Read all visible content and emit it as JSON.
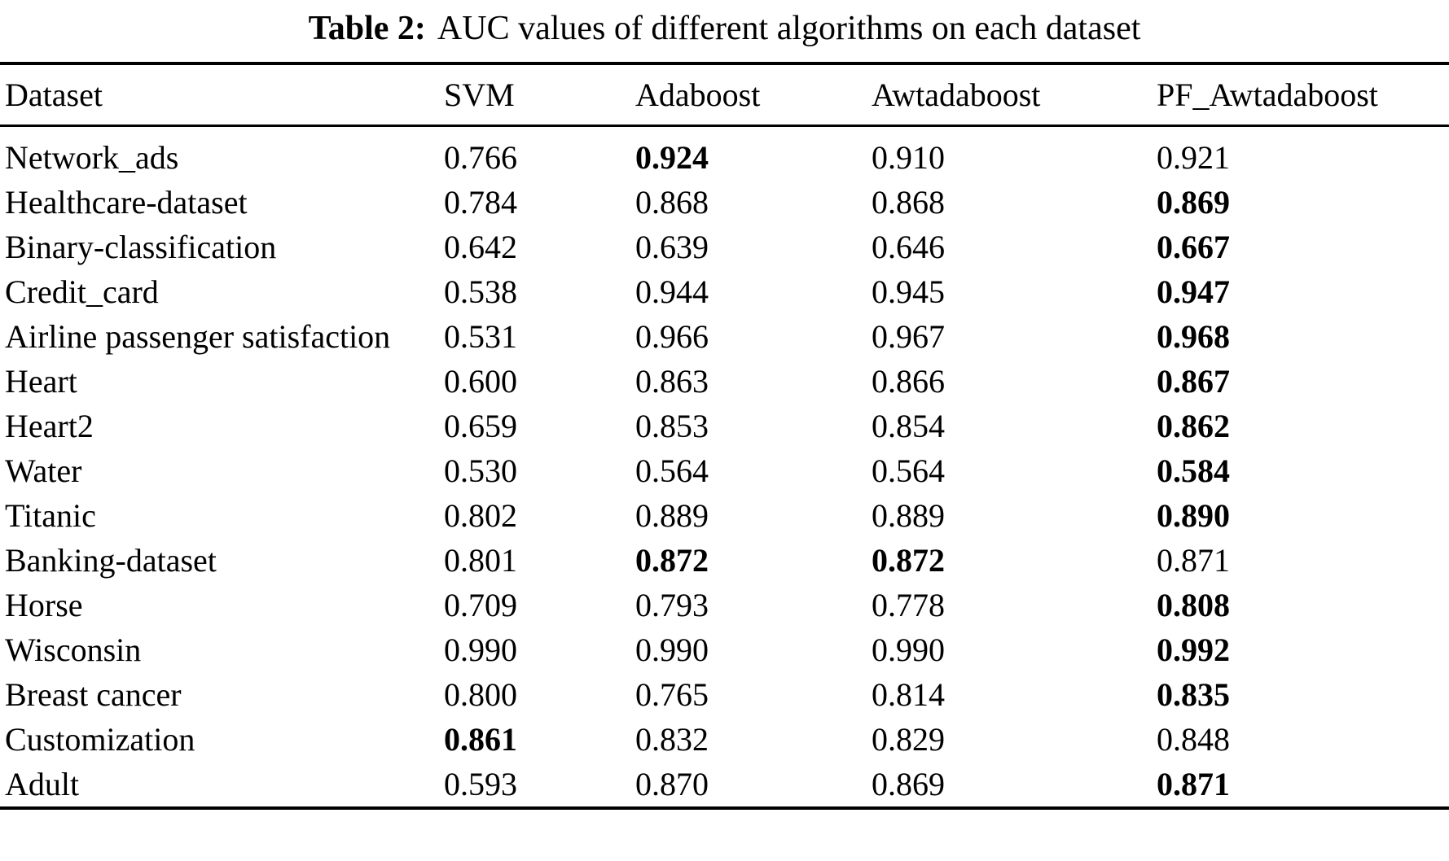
{
  "table": {
    "caption": {
      "label": "Table 2:",
      "text": "AUC values of different algorithms on each dataset"
    },
    "columns": [
      "Dataset",
      "SVM",
      "Adaboost",
      "Awtadaboost",
      "PF_Awtadaboost"
    ],
    "rows": [
      {
        "dataset": "Network_ads",
        "values": [
          "0.766",
          "0.924",
          "0.910",
          "0.921"
        ],
        "bold": [
          false,
          true,
          false,
          false
        ]
      },
      {
        "dataset": "Healthcare-dataset",
        "values": [
          "0.784",
          "0.868",
          "0.868",
          "0.869"
        ],
        "bold": [
          false,
          false,
          false,
          true
        ]
      },
      {
        "dataset": "Binary-classification",
        "values": [
          "0.642",
          "0.639",
          "0.646",
          "0.667"
        ],
        "bold": [
          false,
          false,
          false,
          true
        ]
      },
      {
        "dataset": "Credit_card",
        "values": [
          "0.538",
          "0.944",
          "0.945",
          "0.947"
        ],
        "bold": [
          false,
          false,
          false,
          true
        ]
      },
      {
        "dataset": "Airline passenger satisfaction",
        "values": [
          "0.531",
          "0.966",
          "0.967",
          "0.968"
        ],
        "bold": [
          false,
          false,
          false,
          true
        ]
      },
      {
        "dataset": "Heart",
        "values": [
          "0.600",
          "0.863",
          "0.866",
          "0.867"
        ],
        "bold": [
          false,
          false,
          false,
          true
        ]
      },
      {
        "dataset": "Heart2",
        "values": [
          "0.659",
          "0.853",
          "0.854",
          "0.862"
        ],
        "bold": [
          false,
          false,
          false,
          true
        ]
      },
      {
        "dataset": "Water",
        "values": [
          "0.530",
          "0.564",
          "0.564",
          "0.584"
        ],
        "bold": [
          false,
          false,
          false,
          true
        ]
      },
      {
        "dataset": "Titanic",
        "values": [
          "0.802",
          "0.889",
          "0.889",
          "0.890"
        ],
        "bold": [
          false,
          false,
          false,
          true
        ]
      },
      {
        "dataset": "Banking-dataset",
        "values": [
          "0.801",
          "0.872",
          "0.872",
          "0.871"
        ],
        "bold": [
          false,
          true,
          true,
          false
        ]
      },
      {
        "dataset": "Horse",
        "values": [
          "0.709",
          "0.793",
          "0.778",
          "0.808"
        ],
        "bold": [
          false,
          false,
          false,
          true
        ]
      },
      {
        "dataset": "Wisconsin",
        "values": [
          "0.990",
          "0.990",
          "0.990",
          "0.992"
        ],
        "bold": [
          false,
          false,
          false,
          true
        ]
      },
      {
        "dataset": "Breast cancer",
        "values": [
          "0.800",
          "0.765",
          "0.814",
          "0.835"
        ],
        "bold": [
          false,
          false,
          false,
          true
        ]
      },
      {
        "dataset": "Customization",
        "values": [
          "0.861",
          "0.832",
          "0.829",
          "0.848"
        ],
        "bold": [
          true,
          false,
          false,
          false
        ]
      },
      {
        "dataset": "Adult",
        "values": [
          "0.593",
          "0.870",
          "0.869",
          "0.871"
        ],
        "bold": [
          false,
          false,
          false,
          true
        ]
      }
    ]
  }
}
